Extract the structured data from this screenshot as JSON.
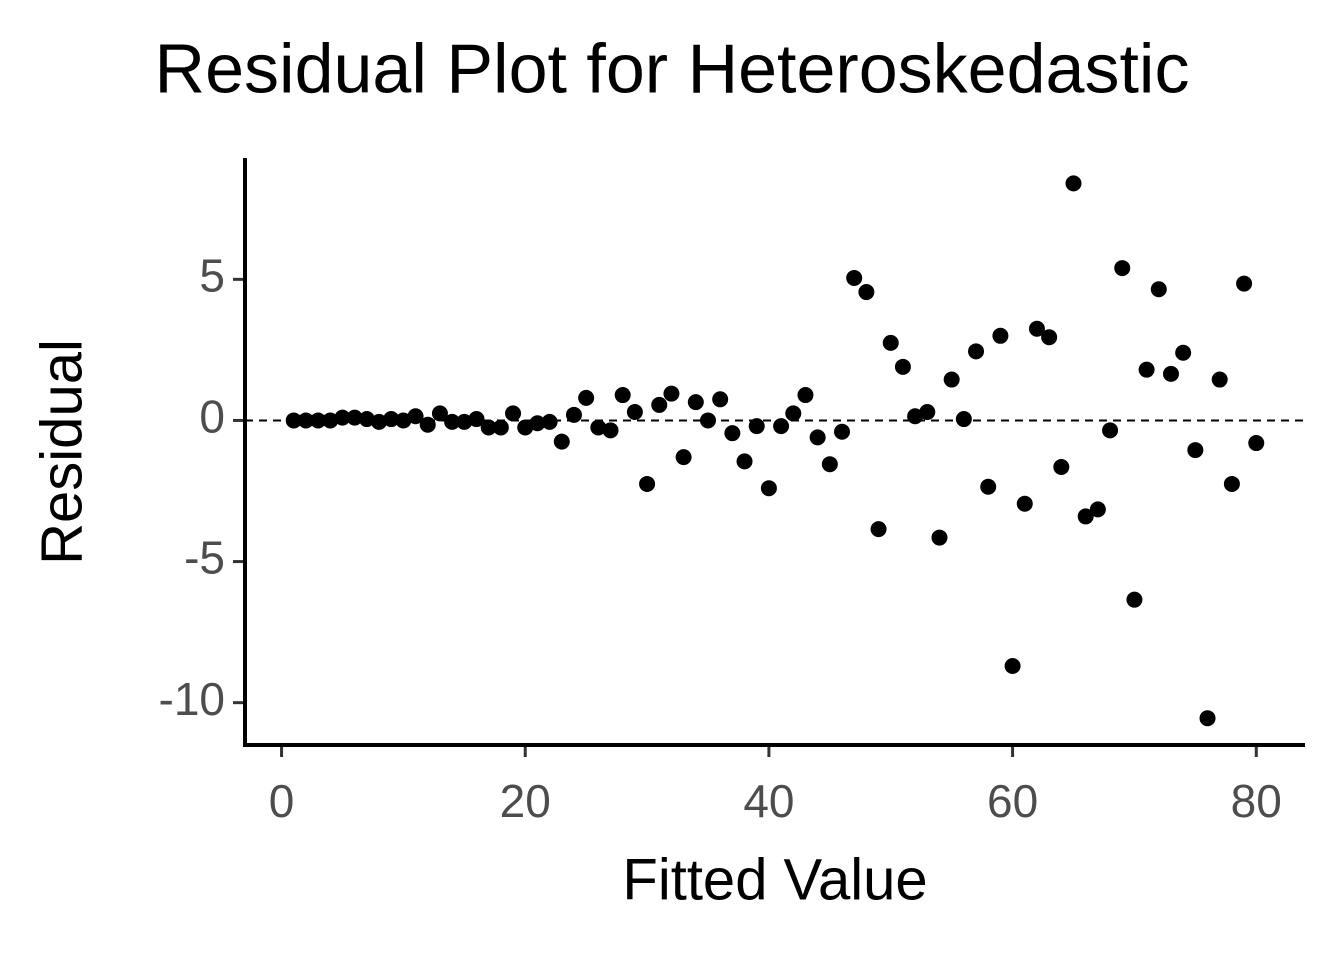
{
  "chart_data": {
    "type": "scatter",
    "title": "Residual Plot for Heteroskedastic",
    "xlabel": "Fitted Value",
    "ylabel": "Residual",
    "x": [
      1,
      2,
      3,
      4,
      5,
      6,
      7,
      8,
      9,
      10,
      11,
      12,
      13,
      14,
      15,
      16,
      17,
      18,
      19,
      20,
      21,
      22,
      23,
      24,
      25,
      26,
      27,
      28,
      29,
      30,
      31,
      32,
      33,
      34,
      35,
      36,
      37,
      38,
      39,
      40,
      41,
      42,
      43,
      44,
      45,
      46,
      47,
      48,
      49,
      50,
      51,
      52,
      53,
      54,
      55,
      56,
      57,
      58,
      59,
      60,
      61,
      62,
      63,
      64,
      65,
      66,
      67,
      68,
      69,
      70,
      71,
      72,
      73,
      74,
      75,
      76,
      77,
      78,
      79,
      80
    ],
    "y": [
      0,
      0,
      0,
      0,
      0.1,
      0.1,
      0.05,
      -0.05,
      0.05,
      0,
      0.15,
      -0.15,
      0.25,
      -0.05,
      -0.05,
      0.05,
      -0.25,
      -0.25,
      0.25,
      -0.25,
      -0.1,
      -0.05,
      -0.75,
      0.2,
      0.8,
      -0.25,
      -0.35,
      0.9,
      0.3,
      -2.25,
      0.55,
      0.95,
      -1.3,
      0.65,
      0,
      0.75,
      -0.45,
      -1.45,
      -0.2,
      -2.4,
      -0.2,
      0.25,
      0.9,
      -0.6,
      -1.55,
      -0.4,
      5.05,
      4.55,
      -3.85,
      2.75,
      1.9,
      0.15,
      0.3,
      -4.15,
      1.45,
      0.05,
      2.45,
      -2.35,
      3.0,
      -8.7,
      -2.95,
      3.25,
      2.95,
      -1.65,
      8.4,
      -3.4,
      -3.15,
      -0.35,
      5.4,
      -6.35,
      1.8,
      4.65,
      1.65,
      2.4,
      -1.05,
      -10.55,
      1.45,
      -2.25,
      4.85,
      -0.8
    ],
    "color": "#000000",
    "hline": 0,
    "xlim": [
      -3,
      84
    ],
    "ylim": [
      -11.5,
      9.3
    ],
    "xticks": [
      0,
      20,
      40,
      60,
      80
    ],
    "yticks": [
      -10,
      -5,
      0,
      5
    ],
    "grid": false
  }
}
